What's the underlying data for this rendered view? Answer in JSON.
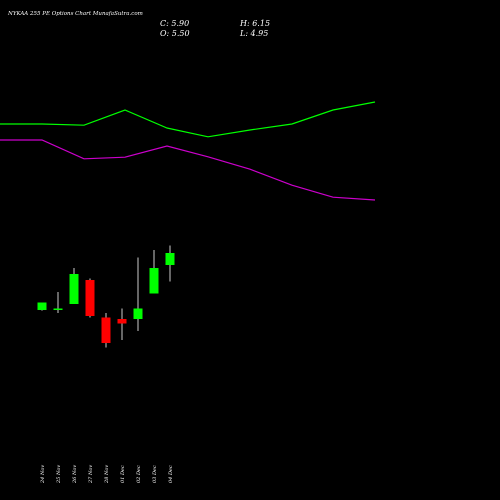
{
  "chart_data": {
    "type": "candlestick",
    "title": "NYKAA 255 PE Options Chart MunafaSutra.com",
    "ohlc": {
      "close_label": "C: 5.90",
      "high_label": "H: 6.15",
      "open_label": "O: 5.50",
      "low_label": "L: 4.95"
    },
    "categories": [
      "24 Nov",
      "25 Nov",
      "26 Nov",
      "27 Nov",
      "28 Nov",
      "01 Dec",
      "02 Dec",
      "03 Dec",
      "04 Dec"
    ],
    "candles": [
      {
        "date": "24 Nov",
        "open": 4.0,
        "high": 4.25,
        "low": 3.98,
        "close": 4.25
      },
      {
        "date": "25 Nov",
        "open": 4.0,
        "high": 4.6,
        "low": 3.9,
        "close": 4.05
      },
      {
        "date": "26 Nov",
        "open": 4.2,
        "high": 5.4,
        "low": 4.2,
        "close": 5.2
      },
      {
        "date": "27 Nov",
        "open": 5.0,
        "high": 5.05,
        "low": 3.75,
        "close": 3.8
      },
      {
        "date": "28 Nov",
        "open": 3.75,
        "high": 3.9,
        "low": 2.75,
        "close": 2.9
      },
      {
        "date": "01 Dec",
        "open": 3.7,
        "high": 4.05,
        "low": 3.0,
        "close": 3.55
      },
      {
        "date": "02 Dec",
        "open": 3.7,
        "high": 5.75,
        "low": 3.3,
        "close": 4.05
      },
      {
        "date": "03 Dec",
        "open": 4.55,
        "high": 6.0,
        "low": 4.55,
        "close": 5.4
      },
      {
        "date": "04 Dec",
        "open": 5.5,
        "high": 6.15,
        "low": 4.95,
        "close": 5.9
      }
    ],
    "overlay_lines": [
      {
        "color": "#00ff00",
        "values": [
          26.5,
          26.5,
          26.2,
          30.0,
          25.5,
          23.3,
          25.0,
          26.5,
          30.0,
          32.0
        ]
      },
      {
        "color": "#cc00cc",
        "values": [
          22.5,
          22.5,
          17.8,
          18.2,
          21.0,
          18.3,
          15.2,
          11.2,
          8.2,
          7.5
        ]
      }
    ],
    "colors": {
      "up": "#00ff00",
      "down": "#ff0000",
      "background": "#000000"
    },
    "grid": false
  }
}
